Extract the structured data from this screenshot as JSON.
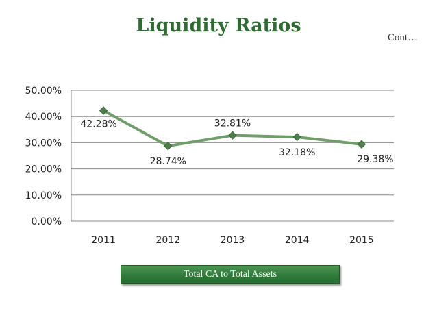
{
  "title": "Liquidity Ratios",
  "subtitle": "Cont…",
  "chart_data": {
    "type": "line",
    "categories": [
      "2011",
      "2012",
      "2013",
      "2014",
      "2015"
    ],
    "series": [
      {
        "name": "Total CA to Total Assets",
        "values": [
          42.28,
          28.74,
          32.81,
          32.18,
          29.38
        ],
        "labels": [
          "42.28%",
          "28.74%",
          "32.81%",
          "32.18%",
          "29.38%"
        ]
      }
    ],
    "yticks": [
      "0.00%",
      "10.00%",
      "20.00%",
      "30.00%",
      "40.00%",
      "50.00%"
    ],
    "ylim": [
      0,
      50
    ],
    "grid": true,
    "legend_position": "bottom",
    "colors": {
      "line": "#6f9e6b",
      "marker": "#4f7d4c",
      "grid": "#8a8a8a"
    }
  }
}
